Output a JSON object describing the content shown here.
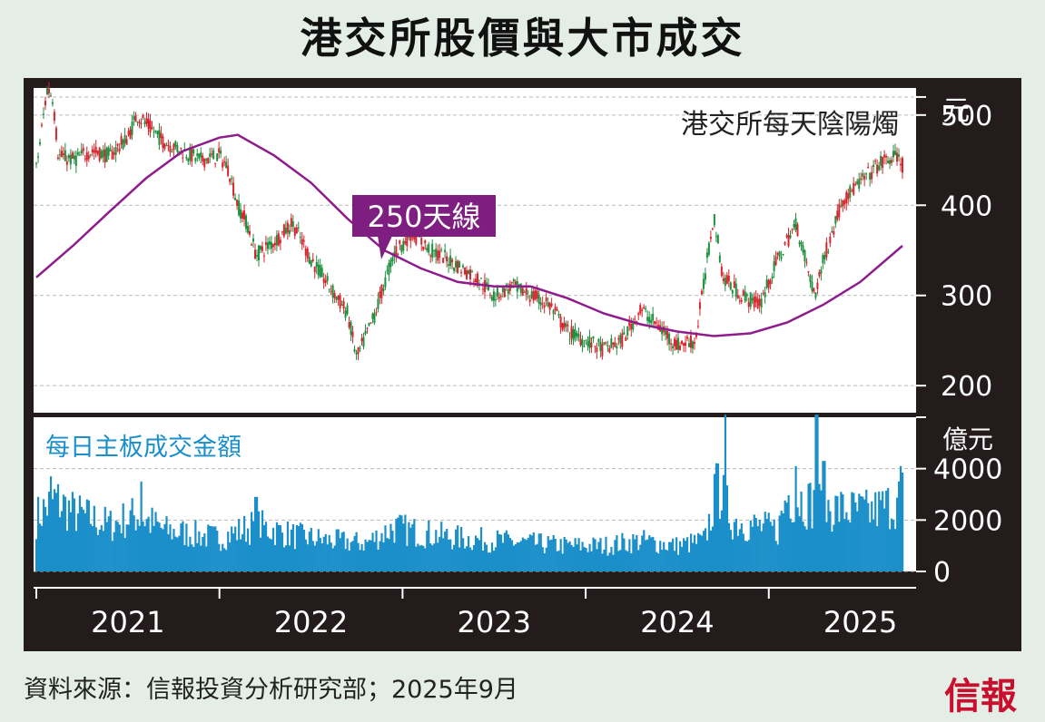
{
  "title": "港交所股價與大市成交",
  "source": "資料來源：信報投資分析研究部；2025年9月",
  "logo": "信報",
  "colors": {
    "up": "#d9232d",
    "down": "#1e8f3e",
    "ma": "#8e1c8c",
    "volume": "#1a8fc9",
    "frame": "#241c1c",
    "label_bg": "#7d1e80"
  },
  "chart_data": [
    {
      "type": "candlestick",
      "title": "港交所每天陰陽燭",
      "y_unit": "元",
      "ylim": [
        170,
        530
      ],
      "yticks": [
        200,
        300,
        400,
        500
      ],
      "grid": true,
      "annotation": "250天線",
      "x_ticks": [
        "2021",
        "2022",
        "2023",
        "2024",
        "2025"
      ],
      "price_points": [
        [
          2021.0,
          440
        ],
        [
          2021.03,
          485
        ],
        [
          2021.06,
          530
        ],
        [
          2021.09,
          520
        ],
        [
          2021.12,
          455
        ],
        [
          2021.2,
          450
        ],
        [
          2021.3,
          460
        ],
        [
          2021.4,
          455
        ],
        [
          2021.5,
          475
        ],
        [
          2021.55,
          500
        ],
        [
          2021.6,
          490
        ],
        [
          2021.7,
          470
        ],
        [
          2021.8,
          460
        ],
        [
          2021.9,
          450
        ],
        [
          2022.0,
          455
        ],
        [
          2022.05,
          440
        ],
        [
          2022.1,
          400
        ],
        [
          2022.15,
          380
        ],
        [
          2022.2,
          345
        ],
        [
          2022.3,
          360
        ],
        [
          2022.4,
          380
        ],
        [
          2022.5,
          340
        ],
        [
          2022.6,
          310
        ],
        [
          2022.7,
          280
        ],
        [
          2022.75,
          230
        ],
        [
          2022.85,
          280
        ],
        [
          2022.95,
          345
        ],
        [
          2023.05,
          370
        ],
        [
          2023.15,
          350
        ],
        [
          2023.25,
          340
        ],
        [
          2023.4,
          320
        ],
        [
          2023.5,
          300
        ],
        [
          2023.6,
          310
        ],
        [
          2023.7,
          300
        ],
        [
          2023.8,
          290
        ],
        [
          2023.9,
          260
        ],
        [
          2024.0,
          250
        ],
        [
          2024.1,
          240
        ],
        [
          2024.2,
          250
        ],
        [
          2024.3,
          285
        ],
        [
          2024.4,
          265
        ],
        [
          2024.5,
          245
        ],
        [
          2024.6,
          250
        ],
        [
          2024.7,
          390
        ],
        [
          2024.75,
          320
        ],
        [
          2024.85,
          300
        ],
        [
          2024.95,
          290
        ],
        [
          2025.05,
          340
        ],
        [
          2025.15,
          380
        ],
        [
          2025.25,
          300
        ],
        [
          2025.3,
          340
        ],
        [
          2025.4,
          405
        ],
        [
          2025.5,
          425
        ],
        [
          2025.6,
          445
        ],
        [
          2025.7,
          455
        ],
        [
          2025.73,
          445
        ]
      ],
      "ma250_points": [
        [
          2021.0,
          320
        ],
        [
          2021.2,
          355
        ],
        [
          2021.4,
          393
        ],
        [
          2021.6,
          430
        ],
        [
          2021.8,
          460
        ],
        [
          2022.0,
          475
        ],
        [
          2022.1,
          478
        ],
        [
          2022.3,
          455
        ],
        [
          2022.5,
          425
        ],
        [
          2022.7,
          385
        ],
        [
          2022.9,
          350
        ],
        [
          2023.1,
          330
        ],
        [
          2023.3,
          315
        ],
        [
          2023.5,
          310
        ],
        [
          2023.7,
          310
        ],
        [
          2023.9,
          297
        ],
        [
          2024.1,
          280
        ],
        [
          2024.3,
          268
        ],
        [
          2024.5,
          260
        ],
        [
          2024.7,
          255
        ],
        [
          2024.9,
          258
        ],
        [
          2025.1,
          270
        ],
        [
          2025.3,
          290
        ],
        [
          2025.5,
          315
        ],
        [
          2025.73,
          355
        ]
      ]
    },
    {
      "type": "bar",
      "title": "每日主板成交金額",
      "y_unit": "億元",
      "ylim": [
        0,
        6000
      ],
      "yticks": [
        0,
        2000,
        4000
      ],
      "volume_points": [
        [
          2021.0,
          2100
        ],
        [
          2021.1,
          2800
        ],
        [
          2021.2,
          2300
        ],
        [
          2021.4,
          1800
        ],
        [
          2021.55,
          2200
        ],
        [
          2021.7,
          1600
        ],
        [
          2021.9,
          1400
        ],
        [
          2022.0,
          1300
        ],
        [
          2022.2,
          1800
        ],
        [
          2022.4,
          1400
        ],
        [
          2022.6,
          1200
        ],
        [
          2022.8,
          1100
        ],
        [
          2022.95,
          1700
        ],
        [
          2023.1,
          1500
        ],
        [
          2023.3,
          1300
        ],
        [
          2023.5,
          1200
        ],
        [
          2023.7,
          1100
        ],
        [
          2023.9,
          1000
        ],
        [
          2024.1,
          1000
        ],
        [
          2024.3,
          1200
        ],
        [
          2024.5,
          1000
        ],
        [
          2024.65,
          1200
        ],
        [
          2024.72,
          3300
        ],
        [
          2024.8,
          2000
        ],
        [
          2024.9,
          1800
        ],
        [
          2025.05,
          1600
        ],
        [
          2025.1,
          3000
        ],
        [
          2025.25,
          2600
        ],
        [
          2025.4,
          2400
        ],
        [
          2025.55,
          2300
        ],
        [
          2025.7,
          2700
        ],
        [
          2025.73,
          3000
        ]
      ],
      "volume_spikes": [
        [
          2021.08,
          3700
        ],
        [
          2021.57,
          3500
        ],
        [
          2022.2,
          2900
        ],
        [
          2024.76,
          6100
        ],
        [
          2024.72,
          4200
        ],
        [
          2025.15,
          4100
        ],
        [
          2025.26,
          6100
        ],
        [
          2025.3,
          4300
        ],
        [
          2025.72,
          4100
        ]
      ]
    }
  ]
}
